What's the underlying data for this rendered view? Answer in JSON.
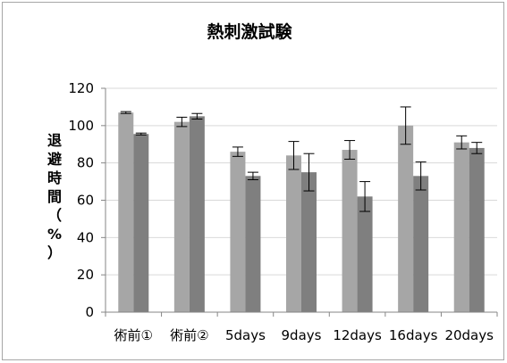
{
  "chart_data": {
    "type": "bar",
    "title": "熱刺激試験",
    "ylabel_chars": [
      "退",
      "避",
      "時",
      "間",
      "（",
      "%",
      "）"
    ],
    "categories": [
      "術前①",
      "術前②",
      "5days",
      "9days",
      "12days",
      "16days",
      "20days"
    ],
    "series": [
      {
        "values": [
          107,
          102,
          86,
          84,
          87,
          100,
          91
        ],
        "errors": [
          0.5,
          2.5,
          2.5,
          7.5,
          5,
          10,
          3.5
        ],
        "color": "#a6a6a6"
      },
      {
        "values": [
          95.5,
          105,
          73,
          75,
          62,
          73,
          88
        ],
        "errors": [
          0.5,
          1.5,
          2,
          10,
          8,
          7.5,
          3
        ],
        "color": "#7f7f7f"
      }
    ],
    "ylim": [
      0,
      120
    ],
    "yticks": [
      0,
      20,
      40,
      60,
      80,
      100,
      120
    ],
    "grid": true,
    "legend": "none"
  }
}
